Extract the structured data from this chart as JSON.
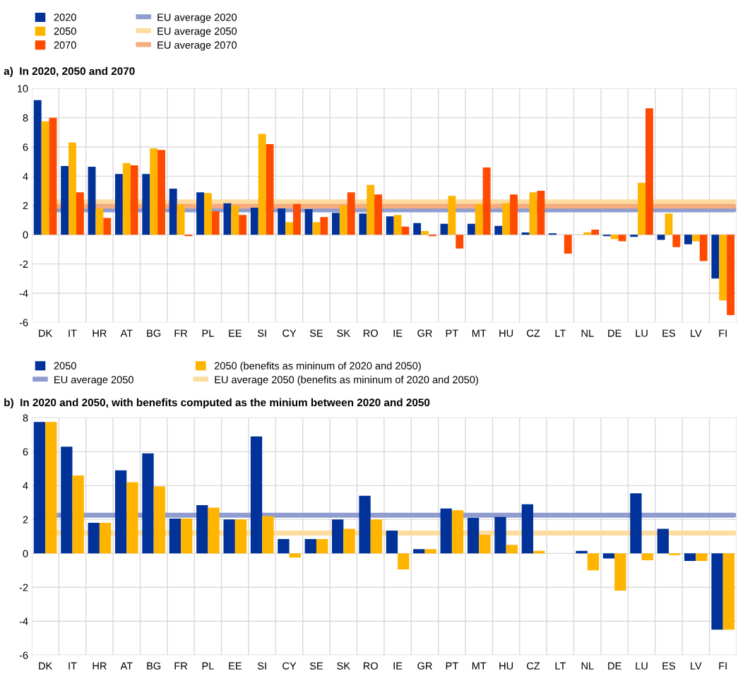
{
  "chart_data": [
    {
      "type": "bar",
      "title": "a)  In 2020, 2050 and 2070",
      "categories": [
        "DK",
        "IT",
        "HR",
        "AT",
        "BG",
        "FR",
        "PL",
        "EE",
        "SI",
        "CY",
        "SE",
        "SK",
        "RO",
        "IE",
        "GR",
        "PT",
        "MT",
        "HU",
        "CZ",
        "LT",
        "NL",
        "DE",
        "LU",
        "ES",
        "LV",
        "FI"
      ],
      "series": [
        {
          "name": "2020",
          "color": "#003299",
          "values": [
            9.2,
            4.7,
            4.65,
            4.15,
            4.15,
            3.15,
            2.9,
            2.15,
            1.85,
            1.8,
            1.75,
            1.5,
            1.45,
            1.25,
            0.8,
            0.75,
            0.75,
            0.6,
            0.15,
            0.1,
            null,
            -0.1,
            -0.15,
            -0.35,
            -0.65,
            -3.0
          ]
        },
        {
          "name": "2050",
          "color": "#ffb400",
          "values": [
            7.75,
            6.3,
            1.8,
            4.9,
            5.9,
            2.05,
            2.85,
            2.0,
            6.9,
            0.85,
            0.85,
            2.0,
            3.4,
            1.35,
            0.25,
            2.65,
            2.1,
            2.15,
            2.9,
            null,
            0.15,
            -0.3,
            3.55,
            1.45,
            -0.45,
            -4.5
          ]
        },
        {
          "name": "2070",
          "color": "#ff4b00",
          "values": [
            8.0,
            2.9,
            1.15,
            4.75,
            5.8,
            -0.1,
            1.6,
            1.35,
            6.2,
            2.1,
            1.2,
            2.9,
            2.75,
            0.55,
            -0.1,
            -0.95,
            4.6,
            2.75,
            3.0,
            -1.3,
            0.35,
            -0.45,
            8.65,
            -0.85,
            -1.8,
            -5.5
          ]
        }
      ],
      "ref_lines": [
        {
          "axis": "y",
          "value": 1.7,
          "label": "EU average 2020",
          "color": "#8f9ccf"
        },
        {
          "axis": "y",
          "value": 2.25,
          "label": "EU average 2050",
          "color": "#fddca0"
        },
        {
          "axis": "y",
          "value": 1.95,
          "label": "EU average 2070",
          "color": "#f5ab80"
        }
      ],
      "ylim": [
        -6,
        10
      ],
      "yticks": [
        -6,
        -4,
        -2,
        0,
        2,
        4,
        6,
        8,
        10
      ],
      "grid": true,
      "legend": "top left"
    },
    {
      "type": "bar",
      "title": "b)  In 2020 and 2050, with benefits computed as the minium between 2020 and 2050",
      "categories": [
        "DK",
        "IT",
        "HR",
        "AT",
        "BG",
        "FR",
        "PL",
        "EE",
        "SI",
        "CY",
        "SE",
        "SK",
        "RO",
        "IE",
        "GR",
        "PT",
        "MT",
        "HU",
        "CZ",
        "LT",
        "NL",
        "DE",
        "LU",
        "ES",
        "LV",
        "FI"
      ],
      "series": [
        {
          "name": "2050",
          "color": "#003299",
          "values": [
            7.75,
            6.3,
            1.8,
            4.9,
            5.9,
            2.05,
            2.85,
            2.0,
            6.9,
            0.85,
            0.85,
            2.0,
            3.4,
            1.35,
            0.25,
            2.65,
            2.1,
            2.15,
            2.9,
            0,
            0.15,
            -0.3,
            3.55,
            1.45,
            -0.45,
            -4.5
          ]
        },
        {
          "name": "2050 (benefits as mininum of 2020 and 2050)",
          "color": "#ffb400",
          "values": [
            7.75,
            4.6,
            1.8,
            4.2,
            3.95,
            2.05,
            2.7,
            2.0,
            2.2,
            -0.25,
            0.85,
            1.45,
            2.0,
            -0.95,
            0.25,
            2.55,
            1.1,
            0.5,
            0.15,
            0,
            -1.0,
            -2.2,
            -0.4,
            -0.1,
            -0.45,
            -4.5
          ]
        }
      ],
      "ref_lines": [
        {
          "axis": "y",
          "value": 2.25,
          "label": "EU average 2050",
          "color": "#8f9ccf"
        },
        {
          "axis": "y",
          "value": 1.2,
          "label": "EU average 2050 (benefits as mininum of 2020 and 2050)",
          "color": "#fddca0"
        }
      ],
      "ylim": [
        -6,
        8
      ],
      "yticks": [
        -6,
        -4,
        -2,
        0,
        2,
        4,
        6,
        8
      ],
      "grid": true,
      "legend": "top left"
    }
  ]
}
